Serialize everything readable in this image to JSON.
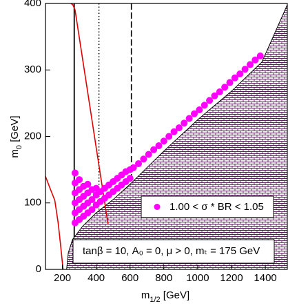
{
  "chart_data": {
    "type": "scatter",
    "x_label": {
      "base": "m",
      "sub": "1/2",
      "unit": " [GeV]"
    },
    "y_label": {
      "base": "m",
      "sub": "0",
      "unit": " [GeV]"
    },
    "xlim": [
      100,
      1530
    ],
    "ylim": [
      0,
      400
    ],
    "xticks": [
      200,
      400,
      600,
      800,
      1000,
      1200,
      1400
    ],
    "yticks": [
      0,
      100,
      200,
      300,
      400
    ],
    "annotation": "tanβ = 10, A₀ = 0, μ > 0, mₜ = 175 GeV",
    "excluded_region": {
      "color": "#5a1f5a",
      "x": [
        225,
        235,
        260,
        320,
        400,
        500,
        600,
        800,
        1000,
        1200,
        1380,
        1530,
        1530
      ],
      "y": [
        0,
        25,
        45,
        65,
        85,
        105,
        128,
        178,
        225,
        268,
        312,
        398,
        0
      ]
    },
    "curves": [
      {
        "color": "#e00000",
        "x": [
          100,
          130,
          155,
          175,
          190,
          204
        ],
        "y": [
          140,
          120,
          104,
          70,
          35,
          0
        ]
      },
      {
        "color": "#e00000",
        "x": [
          250,
          262,
          275,
          350,
          400,
          450,
          470
        ],
        "y": [
          400,
          398,
          390,
          266,
          183,
          101,
          68
        ]
      }
    ],
    "vlines": [
      {
        "color": "#000000",
        "style": "solid",
        "x": 270
      },
      {
        "color": "#000000",
        "style": "dotted",
        "x": 416
      },
      {
        "color": "#000000",
        "style": "dashed",
        "x": 608
      }
    ],
    "series": [
      {
        "name": "1.00 < σ * BR < 1.05",
        "color": "#ff00ff",
        "x": [
          275,
          275,
          275,
          275,
          275,
          275,
          300,
          300,
          300,
          300,
          300,
          325,
          325,
          325,
          325,
          350,
          350,
          350,
          350,
          375,
          375,
          375,
          400,
          400,
          400,
          425,
          425,
          450,
          450,
          475,
          475,
          500,
          500,
          525,
          525,
          550,
          550,
          575,
          575,
          600,
          600,
          620,
          650,
          680,
          710,
          740,
          770,
          800,
          830,
          860,
          890,
          920,
          950,
          980,
          1010,
          1040,
          1070,
          1100,
          1130,
          1160,
          1190,
          1220,
          1250,
          1280,
          1310,
          1340,
          1370
        ],
        "y": [
          70,
          85,
          100,
          115,
          130,
          145,
          75,
          90,
          105,
          120,
          135,
          80,
          95,
          110,
          125,
          85,
          100,
          115,
          128,
          90,
          105,
          120,
          97,
          112,
          122,
          102,
          117,
          107,
          122,
          112,
          127,
          117,
          132,
          122,
          137,
          127,
          142,
          132,
          147,
          137,
          150,
          153,
          159,
          166,
          173,
          180,
          186,
          193,
          200,
          207,
          213,
          220,
          227,
          234,
          240,
          247,
          254,
          261,
          267,
          274,
          281,
          288,
          294,
          301,
          308,
          315,
          321
        ]
      }
    ]
  }
}
